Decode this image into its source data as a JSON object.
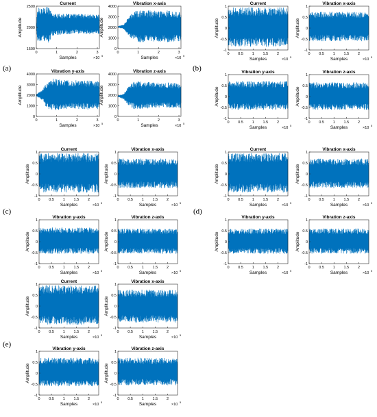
{
  "colors": {
    "signal": "#0072BD",
    "axis": "#262626",
    "text": "#000000"
  },
  "panel_labels": {
    "a": "(a)",
    "b": "(b)",
    "c": "(c)",
    "d": "(d)",
    "e": "(e)"
  },
  "axis_text": {
    "xlabel": "Samples",
    "ylabel": "Amplitude",
    "exponent_base": "×10",
    "exponent_power": "5"
  },
  "titles": {
    "current": "Current",
    "vib_x": "Vibration x-axis",
    "vib_y": "Vibration y-axis",
    "vib_z": "Vibration z-axis"
  },
  "chart_data": [
    {
      "id": "a-current",
      "panel": "(a)",
      "type": "line",
      "title": "Current",
      "xlabel": "Samples",
      "ylabel": "Amplitude",
      "xlim": [
        0,
        3.1
      ],
      "xticks": [
        0,
        1,
        2,
        3
      ],
      "x_multiplier": "×10^5",
      "ylim": [
        1500,
        2500
      ],
      "yticks": [
        1500,
        2000,
        2500
      ],
      "series": [
        {
          "x": [
            0,
            0.05,
            0.1,
            0.7,
            0.75,
            1.5,
            2.0,
            2.5,
            3.1
          ],
          "upper": [
            2000,
            2450,
            2480,
            2480,
            2330,
            2320,
            2320,
            2310,
            2300
          ],
          "lower": [
            2000,
            1600,
            1630,
            1650,
            1800,
            1840,
            1850,
            1840,
            1840
          ]
        }
      ]
    },
    {
      "id": "a-vibx",
      "panel": "(a)",
      "type": "line",
      "title": "Vibration x-axis",
      "xlabel": "Samples",
      "ylabel": "Amplitude",
      "xlim": [
        0,
        3.1
      ],
      "xticks": [
        0,
        1,
        2,
        3
      ],
      "x_multiplier": "×10^5",
      "ylim": [
        0,
        4000
      ],
      "yticks": [
        0,
        1000,
        2000,
        3000,
        4000
      ],
      "series": [
        {
          "x": [
            0,
            0.3,
            0.5,
            0.8,
            1.0,
            1.5,
            2.0,
            2.5,
            3.1
          ],
          "upper": [
            2100,
            2300,
            3000,
            3500,
            3600,
            3600,
            3550,
            3600,
            3500
          ],
          "lower": [
            2000,
            1800,
            1200,
            700,
            600,
            600,
            650,
            600,
            700
          ]
        }
      ]
    },
    {
      "id": "a-viby",
      "panel": "(a)",
      "type": "line",
      "title": "Vibration y-axis",
      "xlabel": "Samples",
      "ylabel": "Amplitude",
      "xlim": [
        0,
        3.1
      ],
      "xticks": [
        0,
        1,
        2,
        3
      ],
      "x_multiplier": "×10^5",
      "ylim": [
        0,
        4000
      ],
      "yticks": [
        0,
        1000,
        2000,
        3000,
        4000
      ],
      "series": [
        {
          "x": [
            0,
            0.3,
            0.5,
            0.8,
            1.0,
            1.5,
            2.0,
            2.5,
            3.1
          ],
          "upper": [
            2100,
            2500,
            3200,
            3600,
            3500,
            3400,
            3400,
            3400,
            3300
          ],
          "lower": [
            1900,
            1500,
            800,
            500,
            600,
            700,
            700,
            650,
            700
          ]
        }
      ]
    },
    {
      "id": "a-vibz",
      "panel": "(a)",
      "type": "line",
      "title": "Vibration z-axis",
      "xlabel": "Samples",
      "ylabel": "Amplitude",
      "xlim": [
        0,
        3.1
      ],
      "xticks": [
        0,
        1,
        2,
        3
      ],
      "x_multiplier": "×10^5",
      "ylim": [
        0,
        4000
      ],
      "yticks": [
        0,
        1000,
        2000,
        3000,
        4000
      ],
      "series": [
        {
          "x": [
            0,
            0.3,
            0.5,
            0.8,
            1.0,
            1.5,
            2.0,
            2.5,
            3.1
          ],
          "upper": [
            1950,
            2150,
            2800,
            3300,
            3300,
            3250,
            3200,
            3200,
            3150
          ],
          "lower": [
            1850,
            1600,
            1000,
            700,
            700,
            750,
            800,
            800,
            800
          ]
        }
      ]
    },
    {
      "id": "b-current",
      "panel": "(b)",
      "type": "line",
      "title": "Current",
      "xlabel": "Samples",
      "ylabel": "Amplitude",
      "xlim": [
        0,
        2.4
      ],
      "xticks": [
        0,
        0.5,
        1,
        1.5,
        2
      ],
      "x_multiplier": "×10^5",
      "ylim": [
        -1,
        1
      ],
      "yticks": [
        -1,
        -0.5,
        0,
        0.5,
        1
      ],
      "series": [
        {
          "x": [
            0,
            2.4
          ],
          "upper": [
            0.95,
            0.95
          ],
          "lower": [
            -0.85,
            -0.85
          ]
        }
      ]
    },
    {
      "id": "b-vibx",
      "panel": "(b)",
      "type": "line",
      "title": "Vibration x-axis",
      "xlabel": "Samples",
      "ylabel": "Amplitude",
      "xlim": [
        0,
        2.4
      ],
      "xticks": [
        0,
        0.5,
        1,
        1.5,
        2
      ],
      "x_multiplier": "×10^5",
      "ylim": [
        -1,
        1
      ],
      "yticks": [
        -1,
        -0.5,
        0,
        0.5,
        1
      ],
      "series": [
        {
          "x": [
            0,
            2.4
          ],
          "upper": [
            0.75,
            0.75
          ],
          "lower": [
            -0.6,
            -0.6
          ]
        }
      ]
    },
    {
      "id": "b-viby",
      "panel": "(b)",
      "type": "line",
      "title": "Vibration y-axis",
      "xlabel": "Samples",
      "ylabel": "Amplitude",
      "xlim": [
        0,
        2.4
      ],
      "xticks": [
        0,
        0.5,
        1,
        1.5,
        2
      ],
      "x_multiplier": "×10^5",
      "ylim": [
        -1,
        1
      ],
      "yticks": [
        -1,
        -0.5,
        0,
        0.5,
        1
      ],
      "series": [
        {
          "x": [
            0,
            2.4
          ],
          "upper": [
            0.7,
            0.7
          ],
          "lower": [
            -0.6,
            -0.6
          ]
        }
      ]
    },
    {
      "id": "b-vibz",
      "panel": "(b)",
      "type": "line",
      "title": "Vibration z-axis",
      "xlabel": "Samples",
      "ylabel": "Amplitude",
      "xlim": [
        0,
        2.4
      ],
      "xticks": [
        0,
        0.5,
        1,
        1.5,
        2
      ],
      "x_multiplier": "×10^5",
      "ylim": [
        -1,
        1
      ],
      "yticks": [
        -1,
        -0.5,
        0,
        0.5,
        1
      ],
      "series": [
        {
          "x": [
            0,
            2.4
          ],
          "upper": [
            0.65,
            0.65
          ],
          "lower": [
            -0.6,
            -0.6
          ]
        }
      ]
    },
    {
      "id": "c-current",
      "panel": "(c)",
      "type": "line",
      "title": "Current",
      "xlabel": "Samples",
      "ylabel": "Amplitude",
      "xlim": [
        0,
        2.4
      ],
      "xticks": [
        0,
        0.5,
        1,
        1.5,
        2
      ],
      "x_multiplier": "×10^5",
      "ylim": [
        -1,
        1
      ],
      "yticks": [
        -1,
        -0.5,
        0,
        0.5,
        1
      ],
      "series": [
        {
          "x": [
            0,
            2.4
          ],
          "upper": [
            0.95,
            0.95
          ],
          "lower": [
            -0.85,
            -0.85
          ]
        }
      ]
    },
    {
      "id": "c-vibx",
      "panel": "(c)",
      "type": "line",
      "title": "Vibration x-axis",
      "xlabel": "Samples",
      "ylabel": "Amplitude",
      "xlim": [
        0,
        2.4
      ],
      "xticks": [
        0,
        0.5,
        1,
        1.5,
        2
      ],
      "x_multiplier": "×10^5",
      "ylim": [
        -1,
        1
      ],
      "yticks": [
        -1,
        -0.5,
        0,
        0.5,
        1
      ],
      "series": [
        {
          "x": [
            0,
            2.4
          ],
          "upper": [
            0.7,
            0.7
          ],
          "lower": [
            -0.65,
            -0.65
          ]
        }
      ]
    },
    {
      "id": "c-viby",
      "panel": "(c)",
      "type": "line",
      "title": "Vibration y-axis",
      "xlabel": "Samples",
      "ylabel": "Amplitude",
      "xlim": [
        0,
        2.4
      ],
      "xticks": [
        0,
        0.5,
        1,
        1.5,
        2
      ],
      "x_multiplier": "×10^5",
      "ylim": [
        -1,
        1
      ],
      "yticks": [
        -1,
        -0.5,
        0,
        0.5,
        1
      ],
      "series": [
        {
          "x": [
            0,
            2.4
          ],
          "upper": [
            0.65,
            0.65
          ],
          "lower": [
            -0.55,
            -0.55
          ]
        }
      ]
    },
    {
      "id": "c-vibz",
      "panel": "(c)",
      "type": "line",
      "title": "Vibration z-axis",
      "xlabel": "Samples",
      "ylabel": "Amplitude",
      "xlim": [
        0,
        2.4
      ],
      "xticks": [
        0,
        0.5,
        1,
        1.5,
        2
      ],
      "x_multiplier": "×10^5",
      "ylim": [
        -1,
        1
      ],
      "yticks": [
        -1,
        -0.5,
        0,
        0.5,
        1
      ],
      "series": [
        {
          "x": [
            0,
            2.4
          ],
          "upper": [
            0.6,
            0.6
          ],
          "lower": [
            -0.55,
            -0.55
          ]
        }
      ]
    },
    {
      "id": "d-current",
      "panel": "(d)",
      "type": "line",
      "title": "Current",
      "xlabel": "Samples",
      "ylabel": "Amplitude",
      "xlim": [
        0,
        2.4
      ],
      "xticks": [
        0,
        0.5,
        1,
        1.5,
        2
      ],
      "x_multiplier": "×10^5",
      "ylim": [
        -1,
        1
      ],
      "yticks": [
        -1,
        -0.5,
        0,
        0.5,
        1
      ],
      "series": [
        {
          "x": [
            0,
            2.4
          ],
          "upper": [
            0.95,
            0.95
          ],
          "lower": [
            -0.85,
            -0.85
          ]
        }
      ]
    },
    {
      "id": "d-vibx",
      "panel": "(d)",
      "type": "line",
      "title": "Vibration x-axis",
      "xlabel": "Samples",
      "ylabel": "Amplitude",
      "xlim": [
        0,
        2.4
      ],
      "xticks": [
        0,
        0.5,
        1,
        1.5,
        2
      ],
      "x_multiplier": "×10^5",
      "ylim": [
        -1,
        1
      ],
      "yticks": [
        -1,
        -0.5,
        0,
        0.5,
        1
      ],
      "series": [
        {
          "x": [
            0,
            2.4
          ],
          "upper": [
            0.7,
            0.7
          ],
          "lower": [
            -0.65,
            -0.65
          ]
        }
      ]
    },
    {
      "id": "d-viby",
      "panel": "(d)",
      "type": "line",
      "title": "Vibration y-axis",
      "xlabel": "Samples",
      "ylabel": "Amplitude",
      "xlim": [
        0,
        2.4
      ],
      "xticks": [
        0,
        0.5,
        1,
        1.5,
        2
      ],
      "x_multiplier": "×10^5",
      "ylim": [
        -1,
        1
      ],
      "yticks": [
        -1,
        -0.5,
        0,
        0.5,
        1
      ],
      "series": [
        {
          "x": [
            0,
            2.4
          ],
          "upper": [
            0.6,
            0.6
          ],
          "lower": [
            -0.55,
            -0.55
          ]
        }
      ]
    },
    {
      "id": "d-vibz",
      "panel": "(d)",
      "type": "line",
      "title": "Vibration z-axis",
      "xlabel": "Samples",
      "ylabel": "Amplitude",
      "xlim": [
        0,
        2.4
      ],
      "xticks": [
        0,
        0.5,
        1,
        1.5,
        2
      ],
      "x_multiplier": "×10^5",
      "ylim": [
        -1,
        1
      ],
      "yticks": [
        -1,
        -0.5,
        0,
        0.5,
        1
      ],
      "series": [
        {
          "x": [
            0,
            2.4
          ],
          "upper": [
            0.6,
            0.6
          ],
          "lower": [
            -0.55,
            -0.55
          ]
        }
      ]
    },
    {
      "id": "e-current",
      "panel": "(e)",
      "type": "line",
      "title": "Current",
      "xlabel": "Samples",
      "ylabel": "Amplitude",
      "xlim": [
        0,
        2.4
      ],
      "xticks": [
        0,
        0.5,
        1,
        1.5,
        2
      ],
      "x_multiplier": "×10^5",
      "ylim": [
        -1,
        1
      ],
      "yticks": [
        -1,
        -0.5,
        0,
        0.5,
        1
      ],
      "series": [
        {
          "x": [
            0,
            2.4
          ],
          "upper": [
            0.95,
            0.95
          ],
          "lower": [
            -0.85,
            -0.85
          ]
        }
      ]
    },
    {
      "id": "e-vibx",
      "panel": "(e)",
      "type": "line",
      "title": "Vibration x-axis",
      "xlabel": "Samples",
      "ylabel": "Amplitude",
      "xlim": [
        0,
        2.4
      ],
      "xticks": [
        0,
        0.5,
        1,
        1.5,
        2
      ],
      "x_multiplier": "×10^5",
      "ylim": [
        -1,
        1
      ],
      "yticks": [
        -1,
        -0.5,
        0,
        0.5,
        1
      ],
      "series": [
        {
          "x": [
            0,
            2.4
          ],
          "upper": [
            0.75,
            0.75
          ],
          "lower": [
            -0.75,
            -0.75
          ]
        }
      ]
    },
    {
      "id": "e-viby",
      "panel": "(e)",
      "type": "line",
      "title": "Vibration y-axis",
      "xlabel": "Samples",
      "ylabel": "Amplitude",
      "xlim": [
        0,
        2.4
      ],
      "xticks": [
        0,
        0.5,
        1,
        1.5,
        2
      ],
      "x_multiplier": "×10^5",
      "ylim": [
        -1,
        1
      ],
      "yticks": [
        -1,
        -0.5,
        0,
        0.5,
        1
      ],
      "series": [
        {
          "x": [
            0,
            2.4
          ],
          "upper": [
            0.7,
            0.7
          ],
          "lower": [
            -0.6,
            -0.6
          ]
        }
      ]
    },
    {
      "id": "e-vibz",
      "panel": "(e)",
      "type": "line",
      "title": "Vibration z-axis",
      "xlabel": "Samples",
      "ylabel": "Amplitude",
      "xlim": [
        0,
        2.4
      ],
      "xticks": [
        0,
        0.5,
        1,
        1.5,
        2
      ],
      "x_multiplier": "×10^5",
      "ylim": [
        -1,
        1
      ],
      "yticks": [
        -1,
        -0.5,
        0,
        0.5,
        1
      ],
      "series": [
        {
          "x": [
            0,
            2.4
          ],
          "upper": [
            0.7,
            0.7
          ],
          "lower": [
            -0.55,
            -0.55
          ]
        }
      ]
    }
  ]
}
